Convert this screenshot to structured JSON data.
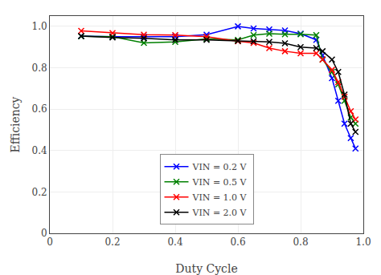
{
  "chart_data": {
    "type": "line",
    "x_label": "Duty Cycle",
    "y_label": "Efficiency",
    "x": [
      0.1,
      0.2,
      0.3,
      0.4,
      0.5,
      0.6,
      0.65,
      0.7,
      0.75,
      0.8,
      0.85,
      0.87,
      0.9,
      0.92,
      0.94,
      0.96,
      0.975
    ],
    "series": [
      {
        "name": "VIN = 0.2 V",
        "color": "blue",
        "values": [
          0.953,
          0.95,
          0.95,
          0.95,
          0.96,
          1.0,
          0.99,
          0.985,
          0.98,
          0.965,
          0.935,
          0.86,
          0.75,
          0.64,
          0.53,
          0.46,
          0.41
        ]
      },
      {
        "name": "VIN = 0.5 V",
        "color": "green",
        "values": [
          0.952,
          0.95,
          0.92,
          0.925,
          0.94,
          0.935,
          0.958,
          0.965,
          0.962,
          0.962,
          0.958,
          0.84,
          0.78,
          0.72,
          0.64,
          0.56,
          0.53
        ]
      },
      {
        "name": "VIN = 1.0 V",
        "color": "red",
        "values": [
          0.978,
          0.968,
          0.96,
          0.958,
          0.95,
          0.928,
          0.92,
          0.895,
          0.88,
          0.87,
          0.87,
          0.84,
          0.79,
          0.73,
          0.66,
          0.59,
          0.55
        ]
      },
      {
        "name": "VIN = 2.0 V",
        "color": "black",
        "values": [
          0.953,
          0.946,
          0.942,
          0.935,
          0.935,
          0.93,
          0.928,
          0.925,
          0.918,
          0.9,
          0.895,
          0.88,
          0.84,
          0.78,
          0.67,
          0.53,
          0.49
        ]
      }
    ],
    "xlim": [
      0,
      1.0
    ],
    "ylim": [
      0.0,
      1.05
    ],
    "xticks": [
      0,
      0.2,
      0.4,
      0.6,
      0.8,
      {
        "value": 1.0,
        "label": "1.0"
      }
    ],
    "yticks": [
      0,
      0.2,
      0.4,
      0.6,
      0.8,
      {
        "value": 1.0,
        "label": "1.0"
      }
    ],
    "grid": true,
    "marker": "x",
    "legend": "lower center"
  }
}
